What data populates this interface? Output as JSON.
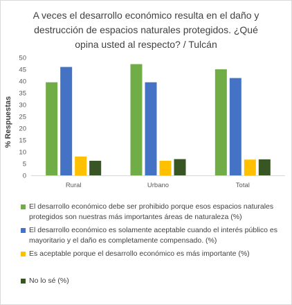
{
  "chart_data": {
    "type": "bar",
    "title_lines": [
      "A veces el desarrollo económico resulta en el daño y",
      "destrucción de espacios naturales protegidos. ¿Qué",
      "opina usted al respecto? / Tulcán"
    ],
    "xlabel": "",
    "ylabel": "% Respuestas",
    "ylim": [
      0,
      50
    ],
    "yticks": [
      0,
      5,
      10,
      15,
      20,
      25,
      30,
      35,
      40,
      45,
      50
    ],
    "grid": false,
    "legend_position": "bottom",
    "categories": [
      "Rural",
      "Urbano",
      "Total"
    ],
    "series": [
      {
        "name_lines": [
          "El desarrollo económico debe ser prohibido porque esos espacios naturales",
          "protegidos son nuestras más importantes áreas de naturaleza (%)"
        ],
        "color": "#70ad47",
        "values": [
          39.5,
          47.2,
          45.0
        ]
      },
      {
        "name_lines": [
          "El desarrollo económico es solamente aceptable cuando el interés público es",
          "mayoritario y el daño es completamente compensado. (%)"
        ],
        "color": "#4472c4",
        "values": [
          46.0,
          39.5,
          41.3
        ]
      },
      {
        "name_lines": [
          "Es aceptable porque el desarrollo económico es más importante (%)"
        ],
        "color": "#ffc000",
        "values": [
          8.0,
          6.2,
          6.7
        ]
      },
      {
        "name_lines": [
          "No lo sé (%)"
        ],
        "color": "#375623",
        "values": [
          6.2,
          6.9,
          6.8
        ]
      }
    ]
  }
}
